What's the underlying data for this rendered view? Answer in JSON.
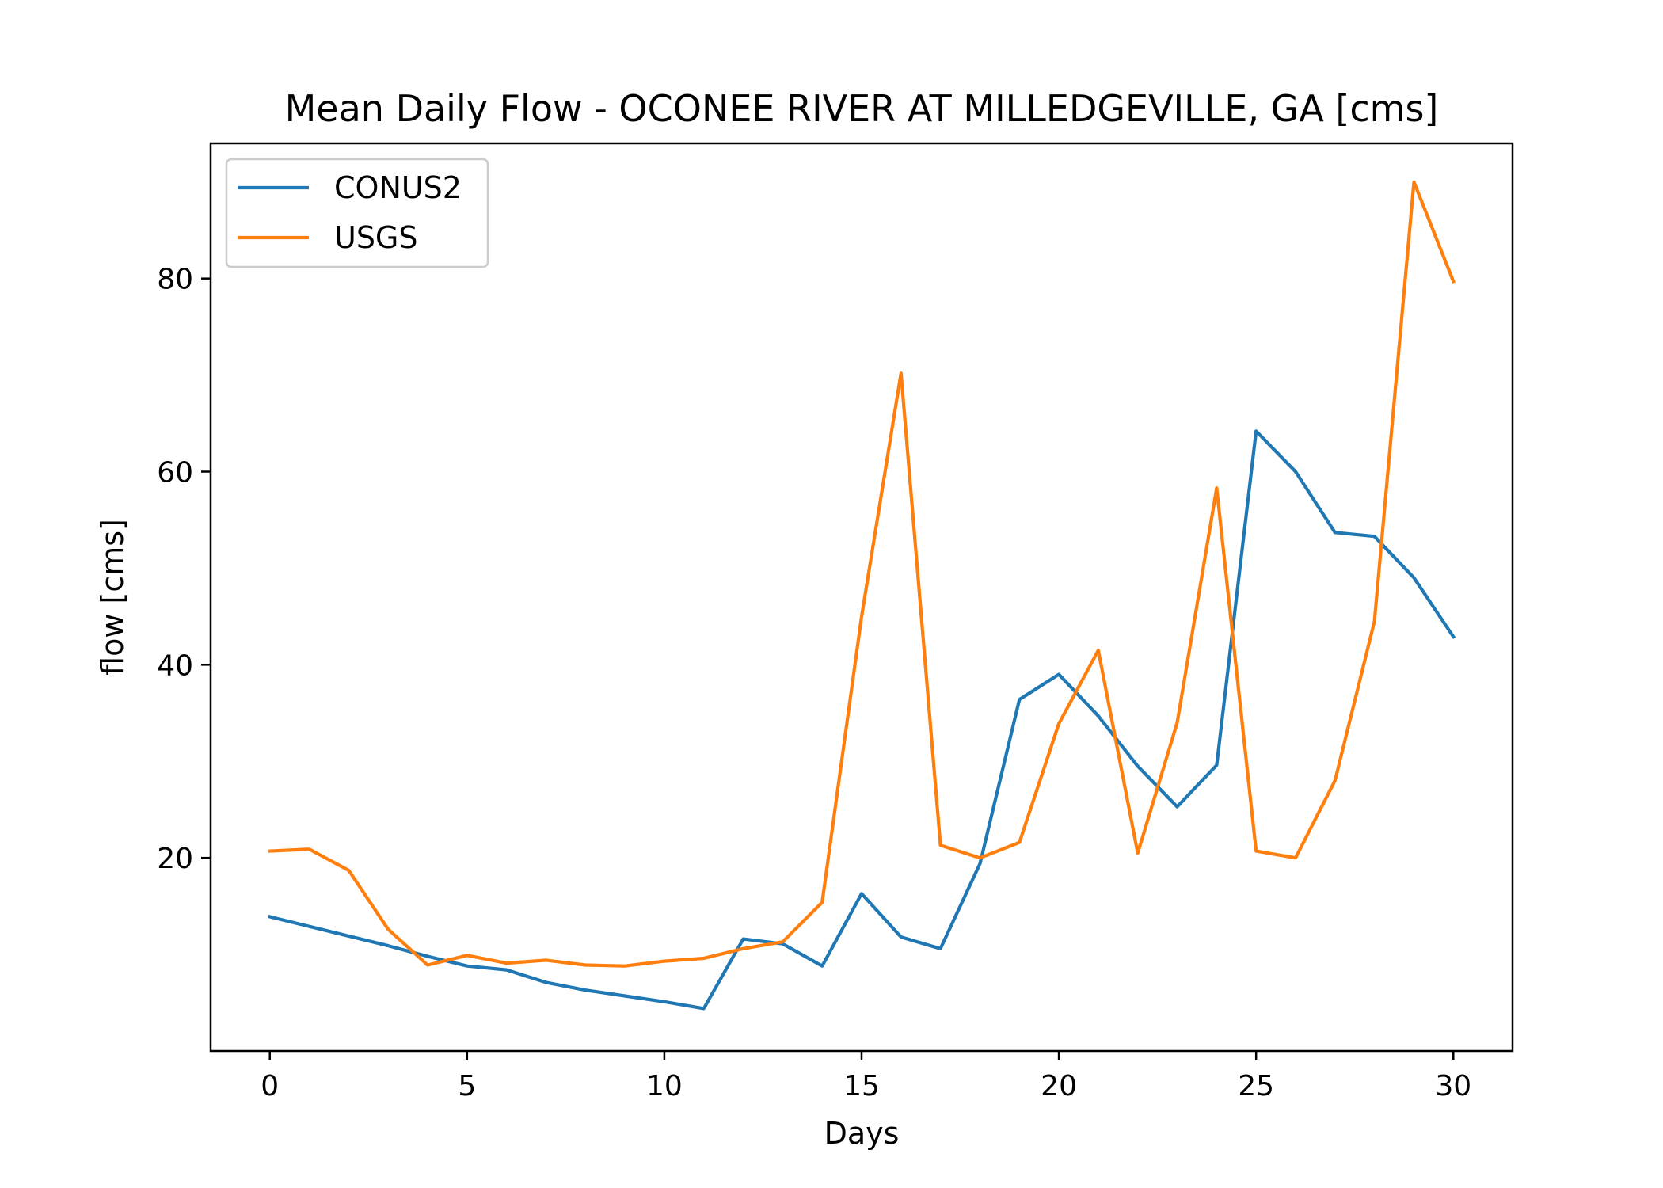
{
  "chart_data": {
    "type": "line",
    "title": "Mean Daily Flow - OCONEE RIVER AT MILLEDGEVILLE, GA [cms]",
    "xlabel": "Days",
    "ylabel": "flow [cms]",
    "xlim": [
      -1.5,
      31.5
    ],
    "ylim": [
      0,
      94
    ],
    "xticks": [
      0,
      5,
      10,
      15,
      20,
      25,
      30
    ],
    "yticks": [
      20,
      40,
      60,
      80
    ],
    "grid": false,
    "legend_position": "top-left",
    "x": [
      0,
      1,
      2,
      3,
      4,
      5,
      6,
      7,
      8,
      9,
      10,
      11,
      12,
      13,
      14,
      15,
      16,
      17,
      18,
      19,
      20,
      21,
      22,
      23,
      24,
      25,
      26,
      27,
      28,
      29,
      30
    ],
    "series": [
      {
        "name": "CONUS2",
        "color": "#1f77b4",
        "values": [
          13.9,
          12.9,
          11.9,
          10.9,
          9.8,
          8.8,
          8.4,
          7.1,
          6.3,
          5.7,
          5.1,
          4.4,
          11.6,
          11.1,
          8.8,
          16.3,
          11.8,
          10.6,
          19.4,
          36.4,
          39.0,
          34.7,
          29.5,
          25.3,
          29.6,
          64.2,
          60.0,
          53.7,
          53.3,
          49.0,
          42.9
        ]
      },
      {
        "name": "USGS",
        "color": "#ff7f0e",
        "values": [
          20.7,
          20.9,
          18.7,
          12.6,
          8.9,
          9.9,
          9.1,
          9.4,
          8.9,
          8.8,
          9.3,
          9.6,
          10.6,
          11.3,
          15.4,
          45.0,
          70.2,
          21.3,
          20.0,
          21.6,
          33.9,
          41.5,
          20.5,
          34.0,
          58.3,
          20.7,
          20.0,
          28.0,
          44.5,
          90.0,
          79.7
        ]
      }
    ]
  }
}
